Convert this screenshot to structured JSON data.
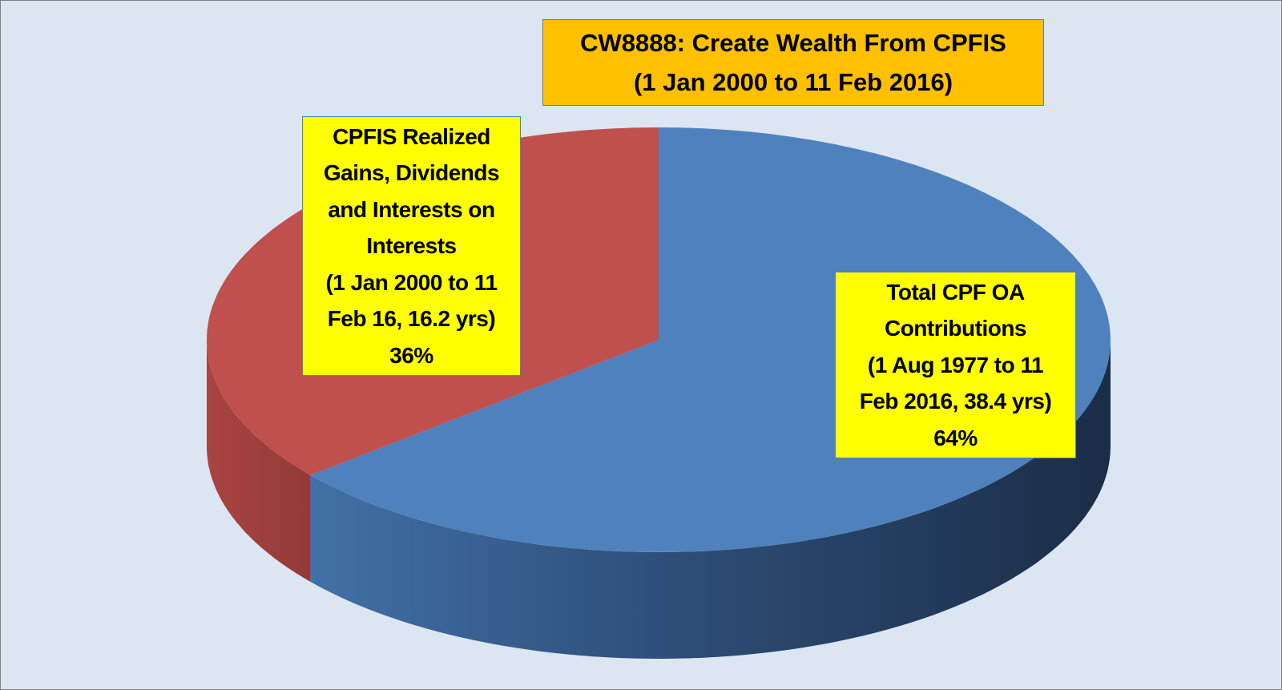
{
  "chart_data": {
    "type": "pie",
    "style": "3d",
    "title": "CW8888: Create Wealth From CPFIS",
    "subtitle": "(1 Jan 2000 to 11 Feb 2016)",
    "slices": [
      {
        "key": "blue",
        "label_lines": [
          "Total CPF OA",
          "Contributions",
          "(1 Aug 1977 to 11",
          "Feb 2016, 38.4 yrs)"
        ],
        "percent_label": "64%",
        "value": 64,
        "color": "#4f81bd",
        "side_color": "#1f3350"
      },
      {
        "key": "red",
        "label_lines": [
          "CPFIS Realized",
          "Gains, Dividends",
          "and Interests on",
          "Interests",
          "(1 Jan 2000 to 11",
          "Feb 16, 16.2 yrs)"
        ],
        "percent_label": "36%",
        "value": 36,
        "color": "#c0504d",
        "side_color": "#9c3d3a"
      }
    ],
    "start_angle_deg": 0,
    "direction": "counterclockwise-from-top for red",
    "legend": "none",
    "colors": {
      "background": "#dce6f2",
      "title_box": "#ffc000",
      "label_box": "#ffff00",
      "box_border": "#4f81bd"
    }
  }
}
